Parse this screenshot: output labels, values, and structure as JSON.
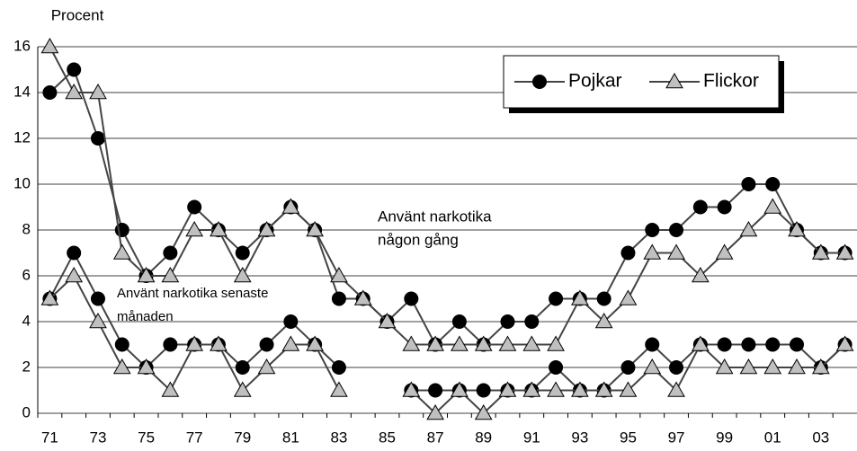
{
  "chart_data": {
    "type": "line",
    "ylabel": "Procent",
    "categories": [
      "71",
      null,
      "73",
      null,
      "75",
      null,
      "77",
      null,
      "79",
      null,
      "81",
      null,
      "83",
      null,
      "85",
      null,
      "87",
      null,
      "89",
      null,
      "91",
      null,
      "93",
      null,
      "95",
      null,
      "97",
      null,
      "99",
      null,
      "01",
      null,
      "03",
      null
    ],
    "ylim": [
      0,
      16
    ],
    "yticks": [
      0,
      2,
      4,
      6,
      8,
      10,
      12,
      14,
      16
    ],
    "grid": true,
    "legend": "upper right",
    "line_color": "#444444",
    "series": [
      {
        "name": "Pojkar",
        "color": "#000000",
        "marker": "circle",
        "values": [
          14,
          15,
          12,
          8,
          6,
          7,
          9,
          8,
          7,
          8,
          9,
          8,
          5,
          5,
          4,
          5,
          3,
          4,
          3,
          4,
          4,
          5,
          5,
          5,
          7,
          8,
          8,
          9,
          9,
          10,
          10,
          8,
          7,
          7
        ]
      },
      {
        "name": "Flickor",
        "color": "#c0c0c0",
        "marker": "triangle",
        "values": [
          16,
          14,
          14,
          7,
          6,
          6,
          8,
          8,
          6,
          8,
          9,
          8,
          6,
          5,
          4,
          3,
          3,
          3,
          3,
          3,
          3,
          3,
          5,
          4,
          5,
          7,
          7,
          6,
          7,
          8,
          9,
          8,
          7,
          7
        ]
      },
      {
        "color": "#000000",
        "marker": "circle",
        "values": [
          5,
          7,
          5,
          3,
          2,
          3,
          3,
          3,
          2,
          3,
          4,
          3,
          2,
          null,
          null,
          1,
          1,
          1,
          1,
          1,
          1,
          2,
          1,
          1,
          2,
          3,
          2,
          3,
          3,
          3,
          3,
          3,
          2,
          3
        ]
      },
      {
        "color": "#c0c0c0",
        "marker": "triangle",
        "values": [
          5,
          6,
          4,
          2,
          2,
          1,
          3,
          3,
          1,
          2,
          3,
          3,
          1,
          null,
          null,
          1,
          0,
          1,
          0,
          1,
          1,
          1,
          1,
          1,
          1,
          2,
          1,
          3,
          2,
          2,
          2,
          2,
          2,
          3
        ]
      }
    ],
    "annotations": [
      {
        "lines": [
          "Använt narkotika",
          "någon gång"
        ]
      },
      {
        "lines": [
          "Använt narkotika senaste",
          "månaden"
        ]
      }
    ]
  }
}
